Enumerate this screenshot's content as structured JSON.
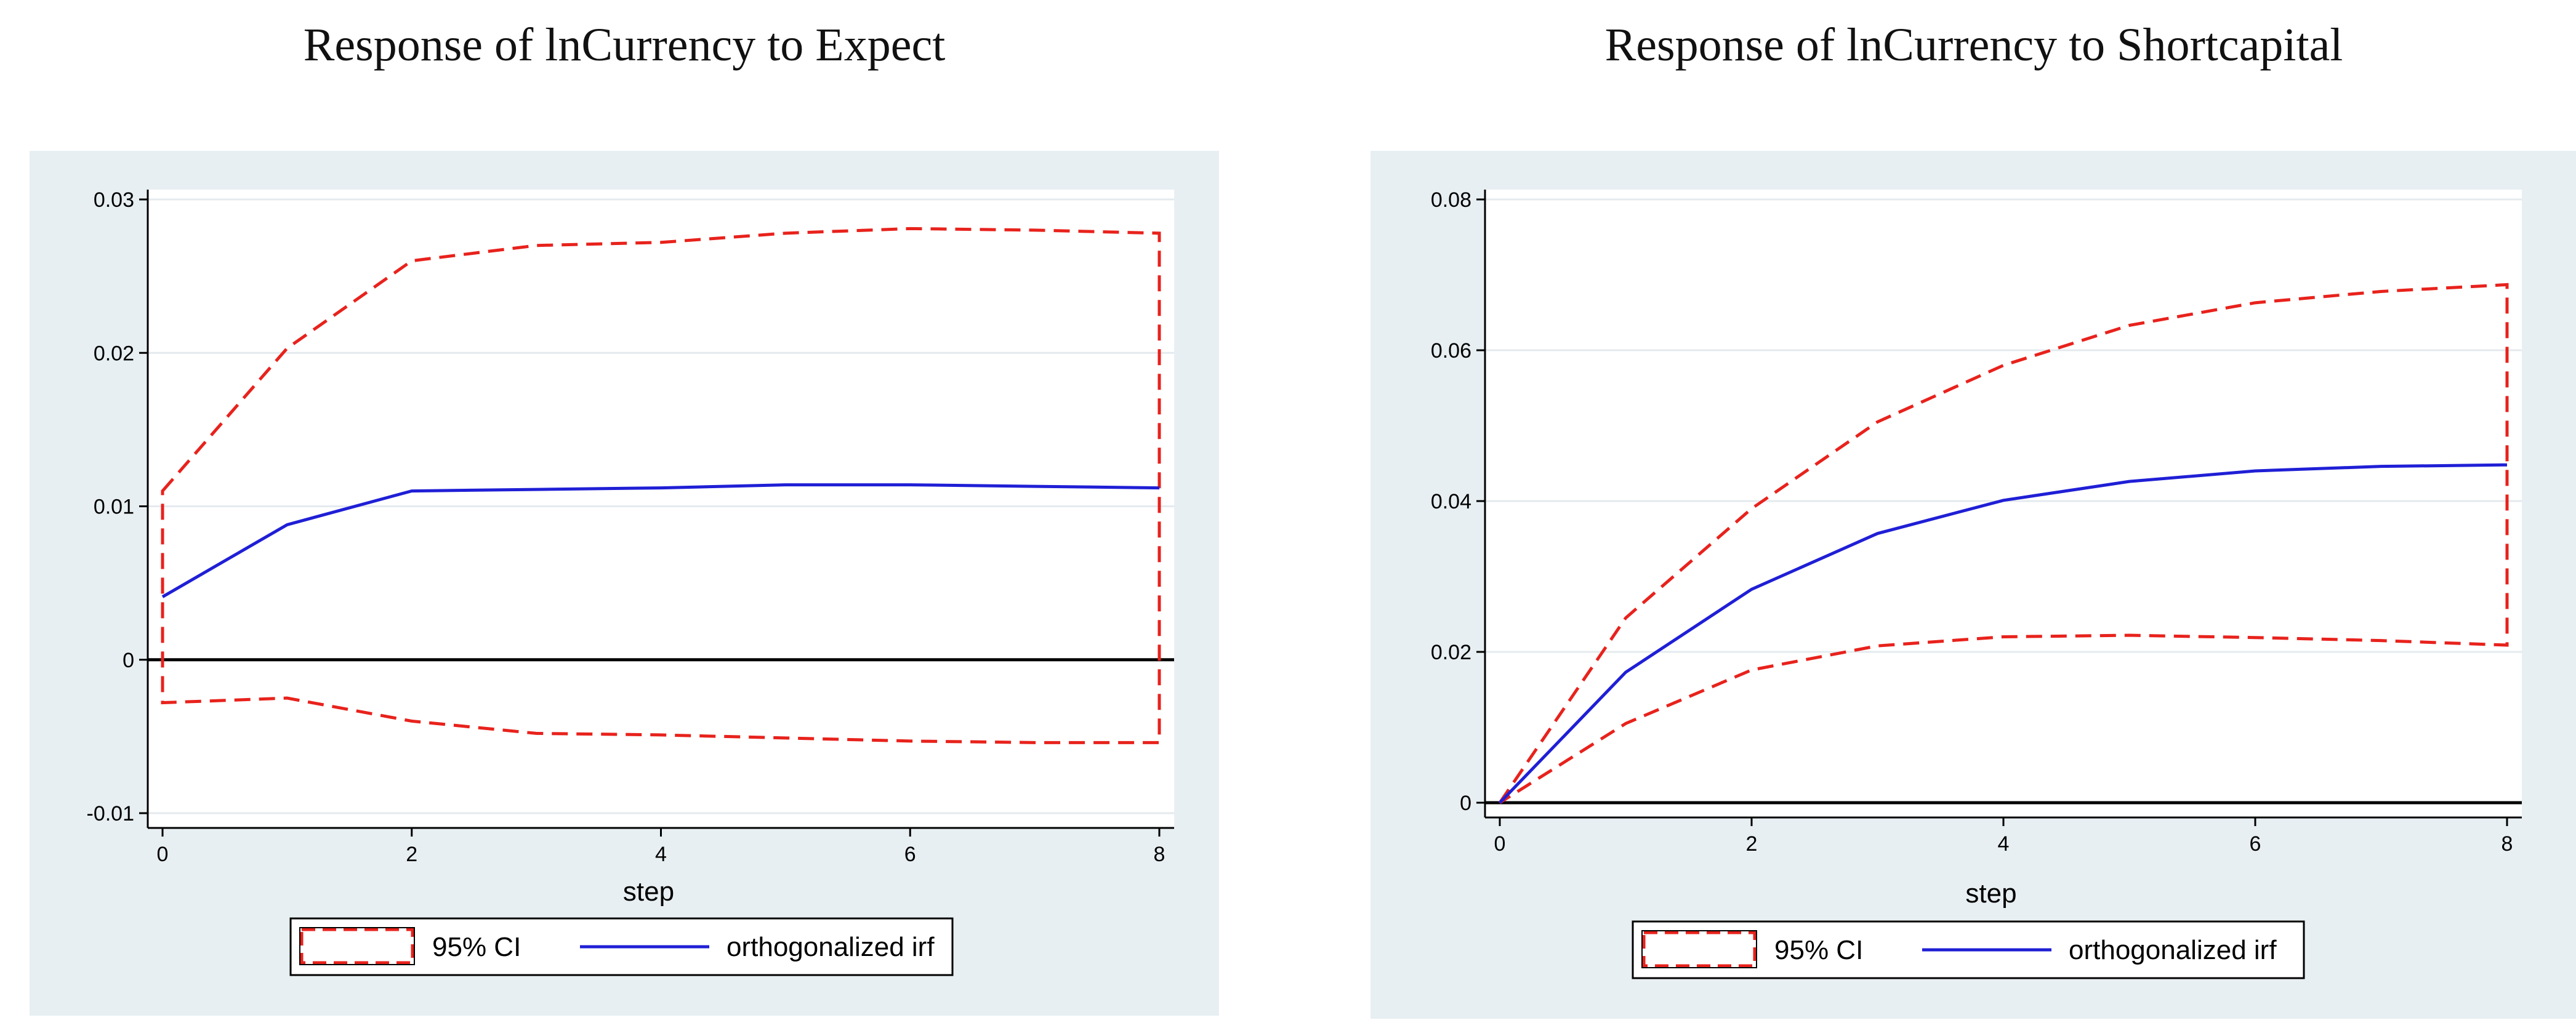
{
  "colors": {
    "panel_background": "#e8eff2",
    "plot_background": "#ffffff",
    "ci": "#e8221c",
    "irf": "#1f1fd6",
    "zero_line": "#000000",
    "grid": "#e4eaee"
  },
  "legend": {
    "ci_label": "95% CI",
    "irf_label": "orthogonalized irf"
  },
  "chart_data": [
    {
      "type": "line",
      "title": "Response of lnCurrency to Expect",
      "xlabel": "step",
      "ylabel": "",
      "xlim": [
        0,
        8
      ],
      "ylim": [
        -0.01,
        0.03
      ],
      "x_ticks": [
        0,
        2,
        4,
        6,
        8
      ],
      "y_ticks": [
        -0.01,
        0,
        0.01,
        0.02,
        0.03
      ],
      "y_tick_labels": [
        "-0.01",
        "0",
        "0.01",
        "0.02",
        "0.03"
      ],
      "grid": true,
      "legend_position": "bottom",
      "x": [
        0,
        1,
        2,
        3,
        4,
        5,
        6,
        7,
        8
      ],
      "series": [
        {
          "name": "95% CI",
          "role": "upper",
          "style": "dashed",
          "values": [
            0.011,
            0.0203,
            0.026,
            0.027,
            0.0272,
            0.0278,
            0.0281,
            0.028,
            0.0278
          ]
        },
        {
          "name": "95% CI",
          "role": "lower",
          "style": "dashed",
          "values": [
            -0.0028,
            -0.0025,
            -0.004,
            -0.0048,
            -0.0049,
            -0.0051,
            -0.0053,
            -0.0054,
            -0.0054
          ]
        },
        {
          "name": "orthogonalized irf",
          "style": "solid",
          "values": [
            0.0041,
            0.0088,
            0.011,
            0.0111,
            0.0112,
            0.0114,
            0.0114,
            0.0113,
            0.0112
          ]
        }
      ]
    },
    {
      "type": "line",
      "title": "Response of lnCurrency to Shortcapital",
      "xlabel": "step",
      "ylabel": "",
      "xlim": [
        0,
        8
      ],
      "ylim": [
        0,
        0.08
      ],
      "x_ticks": [
        0,
        2,
        4,
        6,
        8
      ],
      "y_ticks": [
        0,
        0.02,
        0.04,
        0.06,
        0.08
      ],
      "y_tick_labels": [
        "0",
        "0.02",
        "0.04",
        "0.06",
        "0.08"
      ],
      "grid": true,
      "legend_position": "bottom",
      "x": [
        0,
        1,
        2,
        3,
        4,
        5,
        6,
        7,
        8
      ],
      "series": [
        {
          "name": "95% CI",
          "role": "upper",
          "style": "dashed",
          "values": [
            0,
            0.0245,
            0.039,
            0.0505,
            0.058,
            0.0633,
            0.0663,
            0.0678,
            0.0687
          ]
        },
        {
          "name": "95% CI",
          "role": "lower",
          "style": "dashed",
          "values": [
            0,
            0.0105,
            0.0176,
            0.0208,
            0.022,
            0.0222,
            0.0219,
            0.0215,
            0.0209
          ]
        },
        {
          "name": "orthogonalized irf",
          "style": "solid",
          "values": [
            0,
            0.0173,
            0.0283,
            0.0357,
            0.0401,
            0.0426,
            0.044,
            0.0446,
            0.0448
          ]
        }
      ]
    }
  ]
}
